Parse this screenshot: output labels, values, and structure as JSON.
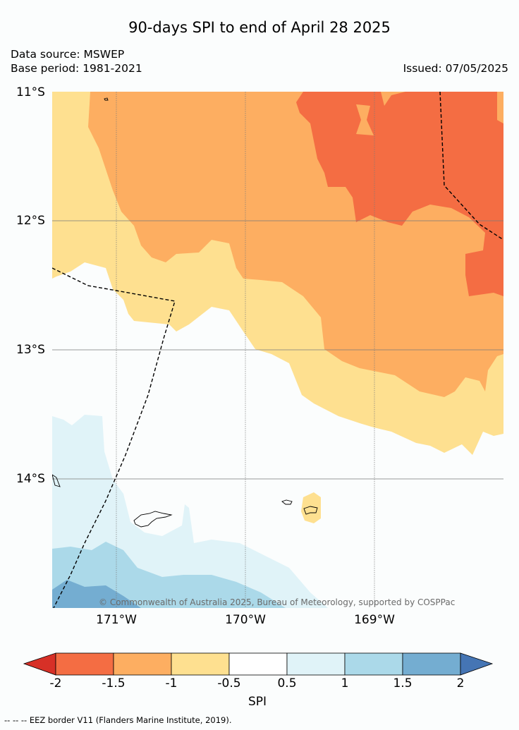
{
  "title": "90-days SPI to end of April 28 2025",
  "data_source": "Data source: MSWEP",
  "base_period": "Base period: 1981-2021",
  "issued": "Issued: 07/05/2025",
  "lat_labels": [
    "11°S",
    "12°S",
    "13°S",
    "14°S"
  ],
  "lon_labels": [
    "171°W",
    "170°W",
    "169°W"
  ],
  "copyright": "© Commonwealth of Australia 2025, Bureau of Meteorology, supported by COSPPac",
  "colorbar": {
    "ticks": [
      "-2",
      "-1.5",
      "-1",
      "-0.5",
      "0.5",
      "1",
      "1.5",
      "2"
    ],
    "label": "SPI",
    "colors": [
      "#d73027",
      "#f46d43",
      "#fdae61",
      "#fee090",
      "#ffffff",
      "#e0f3f8",
      "#abd9e9",
      "#74add1",
      "#4575b4"
    ]
  },
  "eez_legend": "-- -- -- EEZ border V11 (Flanders Marine Institute, 2019)."
}
